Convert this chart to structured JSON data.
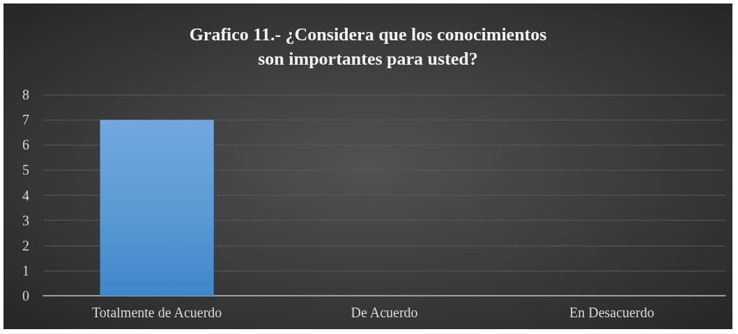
{
  "chart_data": {
    "type": "bar",
    "title": "Grafico 11.- ¿Considera que los conocimientos son importantes para usted?",
    "categories": [
      "Totalmente de Acuerdo",
      "De Acuerdo",
      "En Desacuerdo"
    ],
    "values": [
      7,
      0,
      0
    ],
    "color": "#5b9bd5",
    "ylim": [
      0,
      8
    ],
    "yticks": [
      0,
      1,
      2,
      3,
      4,
      5,
      6,
      7,
      8
    ],
    "grid": "y"
  }
}
